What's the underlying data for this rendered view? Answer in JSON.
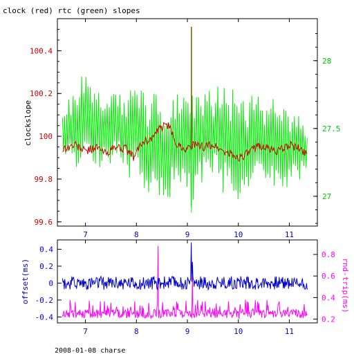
{
  "title": "clock (red) rtc (green) slopes",
  "footer": "2008-01-08 charse",
  "colors": {
    "clock": "#cc0000",
    "rtc": "#00ee00",
    "offset": "#0000cc",
    "rndtrip": "#ff00ff",
    "spike": "#7a5500",
    "axis": "#000000"
  },
  "chart_data": [
    {
      "type": "line",
      "title": "clock (red) rtc (green) slopes",
      "xlabel": "",
      "ylabel": "clockslope",
      "y2label": "",
      "xlim": [
        6.45,
        11.55
      ],
      "ylim": [
        99.58,
        100.55
      ],
      "y2lim": [
        26.78,
        28.31
      ],
      "xticks": [
        "7",
        "8",
        "9",
        "10",
        "11"
      ],
      "yticks": [
        "99.6",
        "99.8",
        "100",
        "100.2",
        "100.4"
      ],
      "y2ticks": [
        "27",
        "27.5",
        "28"
      ],
      "series": [
        {
          "name": "clock",
          "axis": "left",
          "x": [
            6.55,
            6.8,
            7.0,
            7.2,
            7.4,
            7.6,
            7.8,
            7.95,
            8.1,
            8.3,
            8.45,
            8.6,
            8.8,
            9.0,
            9.1,
            9.3,
            9.5,
            9.7,
            9.9,
            10.0,
            10.2,
            10.4,
            10.6,
            10.8,
            11.0,
            11.2,
            11.35
          ],
          "y": [
            99.94,
            99.96,
            99.93,
            99.95,
            99.92,
            99.95,
            99.94,
            99.9,
            99.97,
            99.99,
            100.03,
            100.06,
            99.96,
            99.94,
            99.96,
            99.95,
            99.96,
            99.93,
            99.91,
            99.9,
            99.92,
            99.96,
            99.94,
            99.93,
            99.96,
            99.94,
            99.92
          ]
        },
        {
          "name": "rtc",
          "axis": "right",
          "x": [
            6.55,
            6.7,
            6.85,
            7.0,
            7.15,
            7.3,
            7.45,
            7.6,
            7.75,
            7.9,
            8.05,
            8.2,
            8.35,
            8.5,
            8.65,
            8.8,
            8.95,
            9.1,
            9.25,
            9.4,
            9.55,
            9.7,
            9.85,
            10.0,
            10.15,
            10.3,
            10.45,
            10.6,
            10.75,
            10.9,
            11.05,
            11.2,
            11.35
          ],
          "y_high": [
            27.68,
            27.78,
            27.85,
            27.93,
            27.84,
            27.76,
            27.82,
            27.8,
            27.75,
            27.79,
            27.86,
            27.72,
            27.8,
            27.75,
            27.66,
            27.88,
            27.8,
            27.86,
            27.84,
            27.8,
            27.78,
            27.88,
            27.76,
            27.89,
            27.7,
            27.82,
            27.7,
            27.8,
            27.65,
            27.7,
            27.6,
            27.67,
            27.6
          ],
          "y_low": [
            27.15,
            27.2,
            27.13,
            27.22,
            27.25,
            27.17,
            27.18,
            27.25,
            27.22,
            27.08,
            27.11,
            27.03,
            26.95,
            26.92,
            26.97,
            27.05,
            27.03,
            26.87,
            27.06,
            27.15,
            27.13,
            27.0,
            27.06,
            26.94,
            27.05,
            27.07,
            27.03,
            27.02,
            27.04,
            27.0,
            27.1,
            27.1,
            27.06
          ],
          "annotation": "single spike reaching about 28.25 near x = 9.08"
        }
      ]
    },
    {
      "type": "line",
      "title": "",
      "xlabel": "",
      "ylabel": "offset(ms)",
      "y2label": "rnd-trip(ms)",
      "xlim": [
        6.45,
        11.55
      ],
      "ylim": [
        -0.47,
        0.51
      ],
      "y2lim": [
        0.165,
        0.935
      ],
      "xticks": [
        "7",
        "8",
        "9",
        "10",
        "11"
      ],
      "yticks": [
        "-0.4",
        "-0.2",
        "0",
        "0.2",
        "0.4"
      ],
      "y2ticks": [
        "0.2",
        "0.4",
        "0.6",
        "0.8"
      ],
      "series": [
        {
          "name": "offset",
          "axis": "left",
          "baseline": 0.0,
          "noise_range": [
            -0.08,
            0.08
          ],
          "spikes": [
            {
              "x": 9.08,
              "y": 0.48
            },
            {
              "x": 9.1,
              "y": 0.25
            }
          ]
        },
        {
          "name": "rnd-trip",
          "axis": "right",
          "baseline": 0.25,
          "noise_range": [
            0.2,
            0.38
          ],
          "spikes": [
            {
              "x": 8.42,
              "y": 0.88
            },
            {
              "x": 9.1,
              "y": 0.6
            }
          ]
        }
      ]
    }
  ]
}
